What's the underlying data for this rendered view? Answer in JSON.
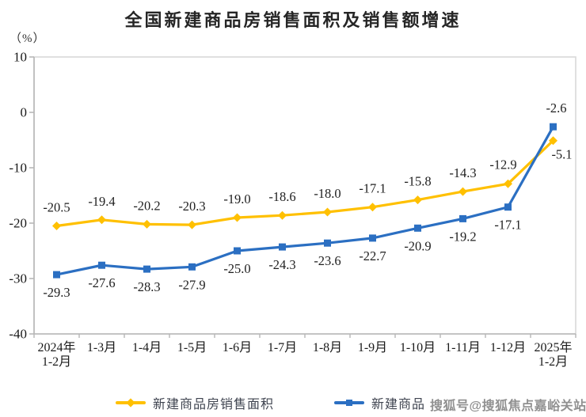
{
  "title": "全国新建商品房销售面积及销售额增速",
  "y_axis_unit": "（%）",
  "watermark": "搜狐号@搜狐焦点嘉峪关站",
  "legend": [
    {
      "label": "新建商品房销售面积",
      "color": "#FFC000",
      "marker": "diamond"
    },
    {
      "label": "新建商品",
      "color": "#2B6FC2",
      "marker": "square"
    }
  ],
  "chart_data": {
    "type": "line",
    "title": "全国新建商品房销售面积及销售额增速",
    "ylabel": "（%）",
    "ylim": [
      -40,
      10
    ],
    "y_ticks": [
      10,
      0,
      -10,
      -20,
      -30,
      -40
    ],
    "grid": false,
    "legend_position": "bottom",
    "categories": [
      [
        "2024年",
        "1-2月"
      ],
      [
        "1-3月"
      ],
      [
        "1-4月"
      ],
      [
        "1-5月"
      ],
      [
        "1-6月"
      ],
      [
        "1-7月"
      ],
      [
        "1-8月"
      ],
      [
        "1-9月"
      ],
      [
        "1-10月"
      ],
      [
        "1-11月"
      ],
      [
        "1-12月"
      ],
      [
        "2025年",
        "1-2月"
      ]
    ],
    "series": [
      {
        "name": "新建商品房销售面积",
        "color": "#FFC000",
        "marker": "diamond",
        "values": [
          -20.5,
          -19.4,
          -20.2,
          -20.3,
          -19.0,
          -18.6,
          -18.0,
          -17.1,
          -15.8,
          -14.3,
          -12.9,
          -5.1
        ],
        "label_dx": 0,
        "label_dy": -23,
        "label_overrides": {
          "10": {
            "dx": -6,
            "dy": -24
          },
          "11": {
            "dx": 11,
            "dy": 18
          }
        }
      },
      {
        "name": "新建商品",
        "color": "#2B6FC2",
        "marker": "square",
        "values": [
          -29.3,
          -27.6,
          -28.3,
          -27.9,
          -25.0,
          -24.3,
          -23.6,
          -22.7,
          -20.9,
          -19.2,
          -17.1,
          -2.6
        ],
        "label_dx": 0,
        "label_dy": 23,
        "label_overrides": {
          "11": {
            "dx": 4,
            "dy": -23
          }
        }
      }
    ]
  }
}
